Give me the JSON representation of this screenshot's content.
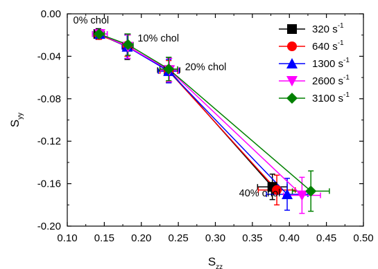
{
  "chart_data": {
    "type": "line",
    "xlabel_main": "S",
    "xlabel_sub": "zz",
    "ylabel_main": "S",
    "ylabel_sub": "yy",
    "xlim": [
      0.1,
      0.5
    ],
    "ylim": [
      -0.2,
      0.0
    ],
    "xticks": [
      0.1,
      0.15,
      0.2,
      0.25,
      0.3,
      0.35,
      0.4,
      0.45,
      0.5
    ],
    "xtick_labels": [
      "0.10",
      "0.15",
      "0.20",
      "0.25",
      "0.30",
      "0.35",
      "0.40",
      "0.45",
      "0.50"
    ],
    "yticks": [
      0.0,
      -0.04,
      -0.08,
      -0.12,
      -0.16,
      -0.2
    ],
    "ytick_labels": [
      "0.00",
      "-0.04",
      "-0.08",
      "-0.12",
      "-0.16",
      "-0.20"
    ],
    "legend_position": "top-right",
    "annotations": [
      {
        "text": "0% chol",
        "x": 0.108,
        "y": -0.009
      },
      {
        "text": "10% chol",
        "x": 0.195,
        "y": -0.026
      },
      {
        "text": "20% chol",
        "x": 0.259,
        "y": -0.053
      },
      {
        "text": "40% chol",
        "x": 0.332,
        "y": -0.172
      }
    ],
    "series": [
      {
        "name_main": "320 s",
        "name_sup": "-1",
        "color": "#000000",
        "marker": "square",
        "x": [
          0.142,
          0.181,
          0.237,
          0.377
        ],
        "y": [
          -0.019,
          -0.031,
          -0.053,
          -0.163
        ],
        "xerr": [
          0.008,
          0.006,
          0.015,
          0.02
        ],
        "yerr": [
          0.005,
          0.012,
          0.012,
          0.012
        ]
      },
      {
        "name_main": "640 s",
        "name_sup": "-1",
        "color": "#ff0000",
        "marker": "circle",
        "x": [
          0.143,
          0.181,
          0.237,
          0.383
        ],
        "y": [
          -0.02,
          -0.03,
          -0.054,
          -0.166
        ],
        "xerr": [
          0.007,
          0.006,
          0.012,
          0.025
        ],
        "yerr": [
          0.004,
          0.01,
          0.01,
          0.014
        ]
      },
      {
        "name_main": "1300 s",
        "name_sup": "-1",
        "color": "#0000ff",
        "marker": "triangle-up",
        "x": [
          0.144,
          0.181,
          0.237,
          0.397
        ],
        "y": [
          -0.019,
          -0.031,
          -0.054,
          -0.17
        ],
        "xerr": [
          0.01,
          0.007,
          0.014,
          0.028
        ],
        "yerr": [
          0.004,
          0.011,
          0.011,
          0.015
        ]
      },
      {
        "name_main": "2600 s",
        "name_sup": "-1",
        "color": "#ff00ff",
        "marker": "triangle-down",
        "x": [
          0.144,
          0.182,
          0.238,
          0.417
        ],
        "y": [
          -0.019,
          -0.031,
          -0.053,
          -0.171
        ],
        "xerr": [
          0.01,
          0.007,
          0.012,
          0.025
        ],
        "yerr": [
          0.004,
          0.011,
          0.011,
          0.017
        ]
      },
      {
        "name_main": "3100 s",
        "name_sup": "-1",
        "color": "#008000",
        "marker": "diamond",
        "x": [
          0.143,
          0.182,
          0.237,
          0.429
        ],
        "y": [
          -0.019,
          -0.029,
          -0.052,
          -0.167
        ],
        "xerr": [
          0.007,
          0.007,
          0.012,
          0.025
        ],
        "yerr": [
          0.004,
          0.01,
          0.011,
          0.019
        ]
      }
    ]
  }
}
